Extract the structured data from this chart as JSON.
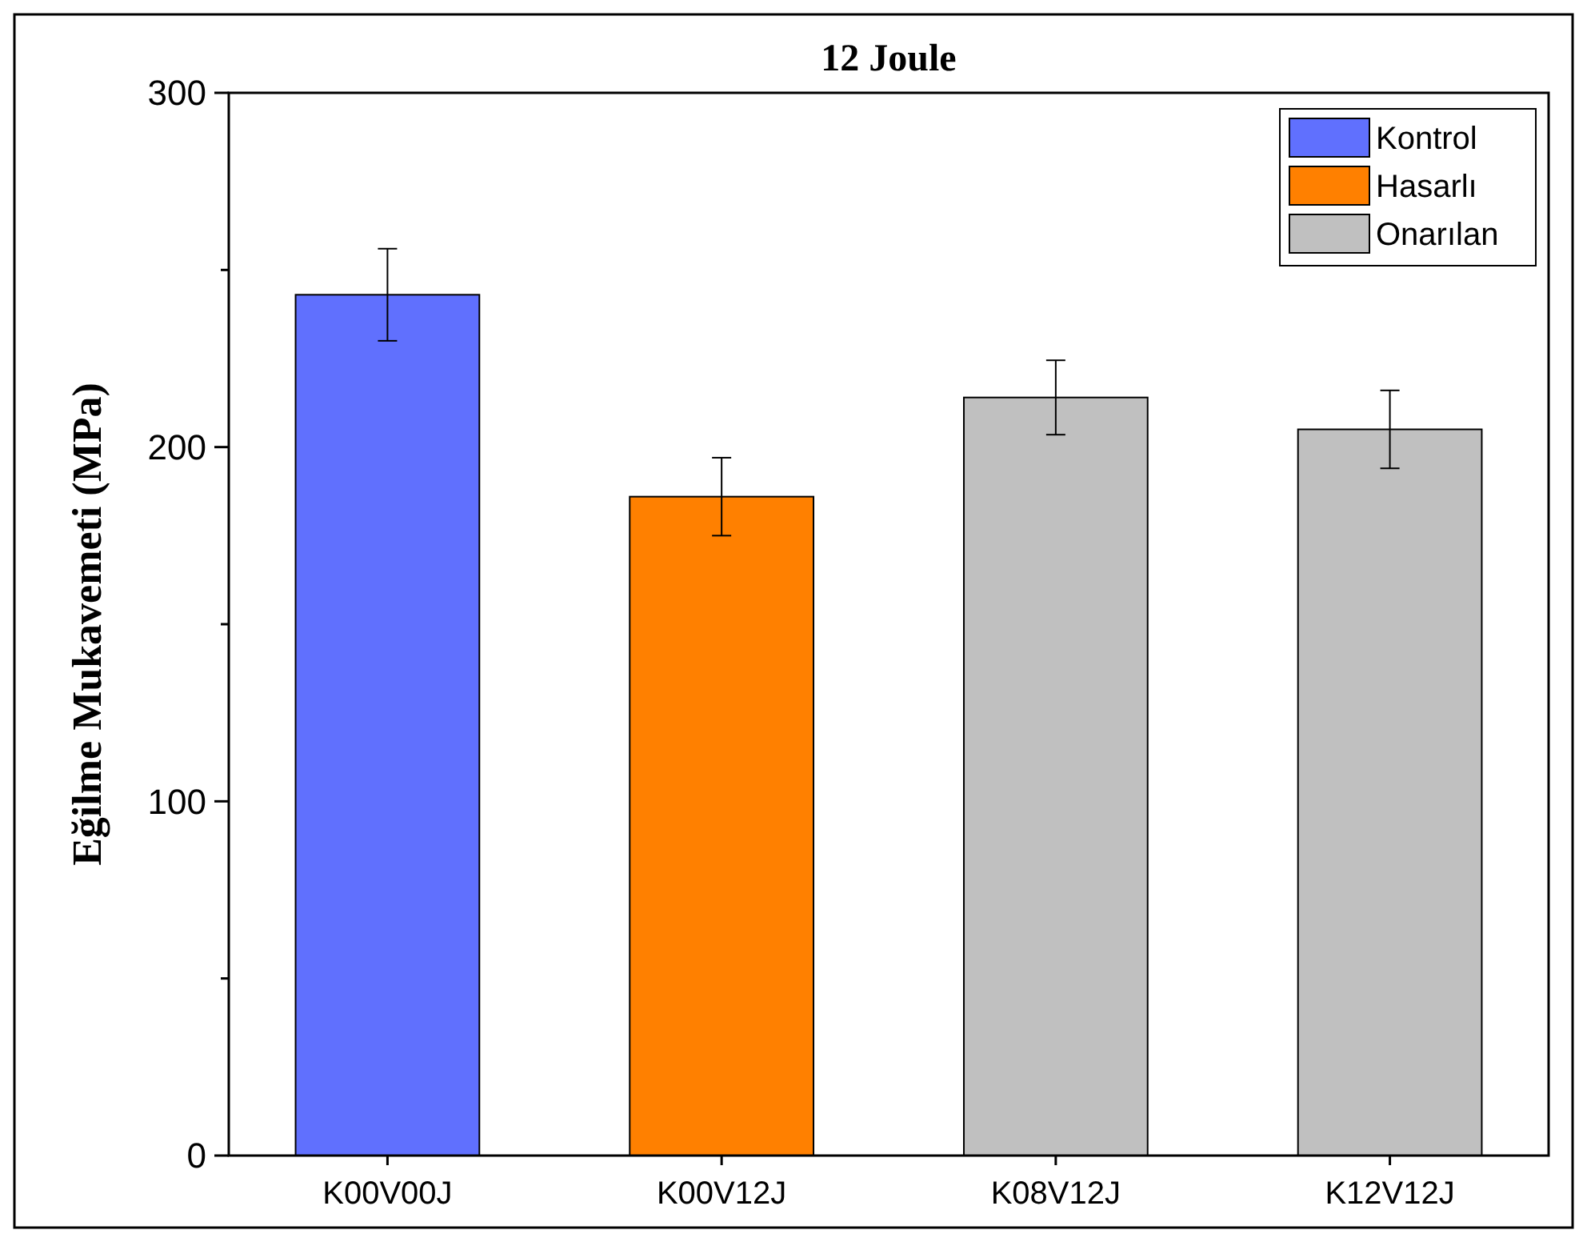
{
  "chart_data": {
    "type": "bar",
    "title": "12 Joule",
    "ylabel": "Eğilme Mukavemeti (MPa)",
    "categories": [
      "K00V00J",
      "K00V12J",
      "K08V12J",
      "K12V12J"
    ],
    "series": [
      {
        "name": "Kontrol",
        "color": "#6070fe",
        "values": [
          243,
          null,
          null,
          null
        ],
        "errors": [
          13,
          null,
          null,
          null
        ]
      },
      {
        "name": "Hasarlı",
        "color": "#ff8000",
        "values": [
          null,
          186,
          null,
          null
        ],
        "errors": [
          null,
          11,
          null,
          null
        ]
      },
      {
        "name": "Onarılan",
        "color": "#c0c0c0",
        "values": [
          null,
          null,
          214,
          205
        ],
        "errors": [
          null,
          null,
          10.5,
          11
        ]
      }
    ],
    "ylim": [
      0,
      300
    ],
    "yticks": [
      0,
      {
        "value": 50,
        "label": null
      },
      100,
      {
        "value": 150,
        "label": null
      },
      200,
      {
        "value": 250,
        "label": null
      },
      300
    ],
    "grid": false,
    "legend": "top right"
  }
}
